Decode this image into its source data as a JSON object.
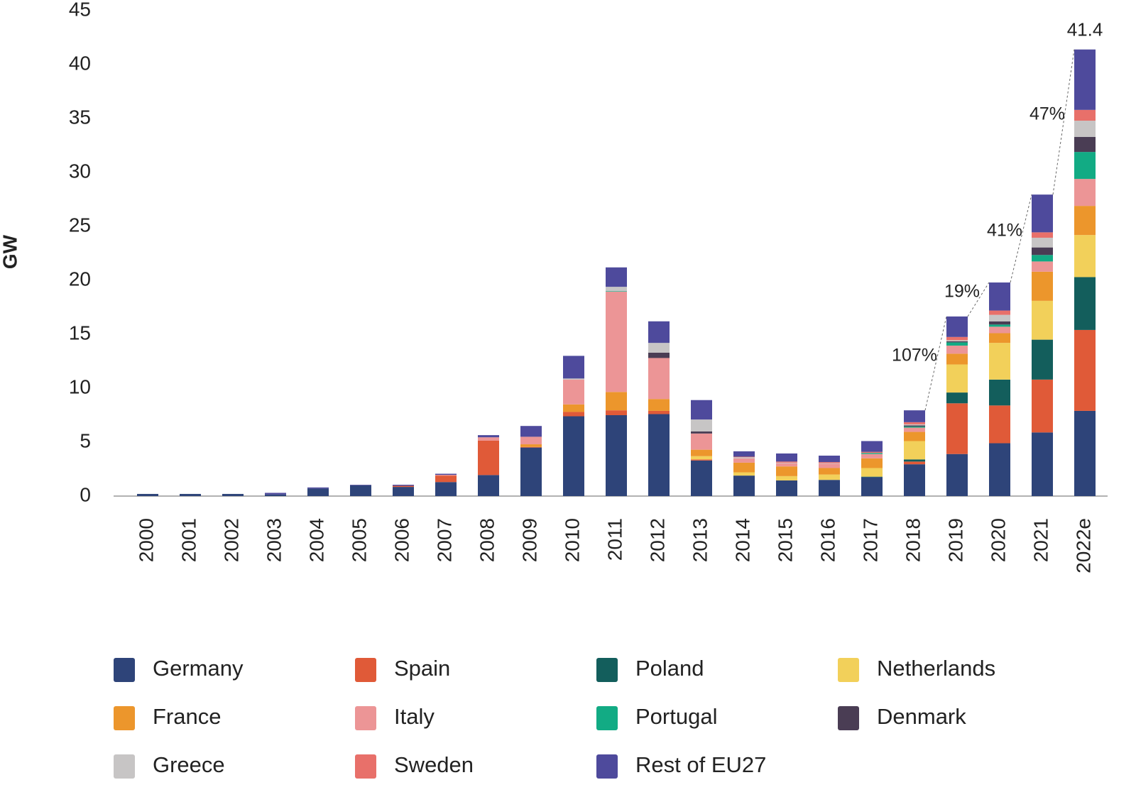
{
  "chart_data": {
    "type": "stacked_bar",
    "y_label": "GW",
    "categories": [
      "2000",
      "2001",
      "2002",
      "2003",
      "2004",
      "2005",
      "2006",
      "2007",
      "2008",
      "2009",
      "2010",
      "2011",
      "2012",
      "2013",
      "2014",
      "2015",
      "2016",
      "2017",
      "2018",
      "2019",
      "2020",
      "2021",
      "2022e"
    ],
    "series": [
      {
        "name": "Germany",
        "color": "#2e4479",
        "values": [
          0.2,
          0.2,
          0.2,
          0.15,
          0.7,
          1.0,
          0.85,
          1.3,
          1.95,
          4.5,
          7.4,
          7.5,
          7.6,
          3.3,
          1.9,
          1.45,
          1.5,
          1.75,
          2.95,
          3.9,
          4.9,
          5.9,
          7.9
        ]
      },
      {
        "name": "Spain",
        "color": "#e05a38",
        "values": [
          0,
          0,
          0,
          0,
          0,
          0,
          0.1,
          0.6,
          3.2,
          0.05,
          0.4,
          0.45,
          0.3,
          0.1,
          0,
          0,
          0,
          0,
          0.25,
          4.7,
          3.5,
          4.9,
          7.5
        ]
      },
      {
        "name": "Poland",
        "color": "#135e5c",
        "values": [
          0,
          0,
          0,
          0,
          0,
          0,
          0,
          0,
          0,
          0,
          0,
          0,
          0,
          0,
          0,
          0,
          0,
          0.05,
          0.2,
          1.0,
          2.4,
          3.7,
          4.9
        ]
      },
      {
        "name": "Netherlands",
        "color": "#f2d05a",
        "values": [
          0,
          0,
          0,
          0,
          0,
          0,
          0,
          0,
          0,
          0,
          0,
          0,
          0,
          0.3,
          0.3,
          0.4,
          0.5,
          0.8,
          1.7,
          2.6,
          3.4,
          3.6,
          3.9
        ]
      },
      {
        "name": "France",
        "color": "#ec962c",
        "values": [
          0,
          0,
          0,
          0,
          0,
          0,
          0,
          0,
          0,
          0.25,
          0.7,
          1.7,
          1.1,
          0.6,
          0.9,
          0.9,
          0.6,
          0.9,
          0.85,
          1.0,
          0.9,
          2.7,
          2.7
        ]
      },
      {
        "name": "Italy",
        "color": "#ec9596",
        "values": [
          0,
          0,
          0,
          0,
          0,
          0,
          0,
          0.07,
          0.3,
          0.7,
          2.3,
          9.3,
          3.8,
          1.5,
          0.4,
          0.3,
          0.4,
          0.4,
          0.4,
          0.75,
          0.6,
          0.95,
          2.5
        ]
      },
      {
        "name": "Portugal",
        "color": "#12ab84",
        "values": [
          0,
          0,
          0,
          0,
          0,
          0,
          0,
          0,
          0,
          0,
          0,
          0.05,
          0,
          0,
          0,
          0,
          0,
          0.1,
          0.1,
          0.3,
          0.2,
          0.6,
          2.5
        ]
      },
      {
        "name": "Denmark",
        "color": "#4a3d54",
        "values": [
          0,
          0,
          0,
          0,
          0,
          0,
          0,
          0,
          0,
          0,
          0,
          0,
          0.5,
          0.2,
          0,
          0,
          0,
          0,
          0.1,
          0.1,
          0.3,
          0.7,
          1.4
        ]
      },
      {
        "name": "Greece",
        "color": "#c7c5c5",
        "values": [
          0,
          0,
          0,
          0,
          0,
          0,
          0,
          0,
          0,
          0,
          0.1,
          0.4,
          0.9,
          1.1,
          0.1,
          0.05,
          0.05,
          0,
          0.1,
          0.1,
          0.6,
          0.9,
          1.5
        ]
      },
      {
        "name": "Sweden",
        "color": "#e8706a",
        "values": [
          0,
          0,
          0,
          0,
          0,
          0,
          0,
          0,
          0,
          0,
          0,
          0,
          0,
          0,
          0.05,
          0.1,
          0.1,
          0.1,
          0.2,
          0.3,
          0.4,
          0.5,
          1.0
        ]
      },
      {
        "name": "Rest of EU27",
        "color": "#4e4a9c",
        "values": [
          0,
          0,
          0,
          0.15,
          0.1,
          0.05,
          0.1,
          0.1,
          0.2,
          1.0,
          2.1,
          1.8,
          2.0,
          1.8,
          0.5,
          0.75,
          0.6,
          1.0,
          1.1,
          1.9,
          2.6,
          3.5,
          5.6
        ]
      }
    ],
    "total_label": "41.4",
    "annotations": [
      "107%",
      "19%",
      "41%",
      "47%"
    ],
    "ylim": [
      0,
      45
    ],
    "yticks": [
      0,
      5,
      10,
      15,
      20,
      25,
      30,
      35,
      40,
      45
    ]
  }
}
